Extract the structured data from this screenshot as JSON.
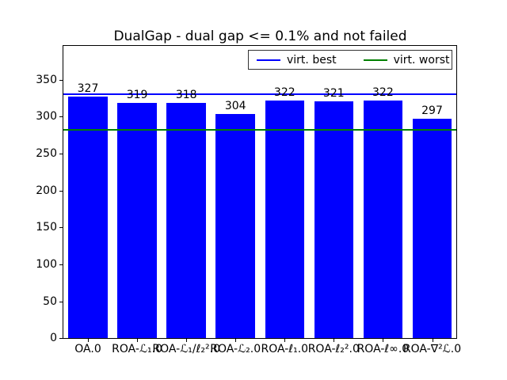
{
  "chart_data": {
    "type": "bar",
    "title": "DualGap - dual gap <= 0.1% and not failed",
    "categories": [
      "OA.0",
      "ROA-ℒ₁.0",
      "ROA-ℒ₁/ℓ₂².0",
      "ROA-ℒ₂.0",
      "ROA-ℓ₁.0",
      "ROA-ℓ₂².0",
      "ROA-ℓ∞.0",
      "ROA-∇²ℒ.0"
    ],
    "values": [
      327,
      319,
      318,
      304,
      322,
      321,
      322,
      297
    ],
    "bar_color": "#0000ff",
    "value_labels_shown": true,
    "xlabel": "",
    "ylabel": "",
    "yticks": [
      0,
      50,
      100,
      150,
      200,
      250,
      300,
      350
    ],
    "ylim": [
      0,
      396
    ],
    "grid": false,
    "hlines": [
      {
        "label": "virt. best",
        "value": 330,
        "color": "#0000ff"
      },
      {
        "label": "virt. worst",
        "value": 282,
        "color": "#008000"
      }
    ],
    "legend": {
      "position": "upper right",
      "entries": [
        "virt. best",
        "virt. worst"
      ]
    },
    "axis_color": "#000000",
    "background_color": "#ffffff"
  }
}
